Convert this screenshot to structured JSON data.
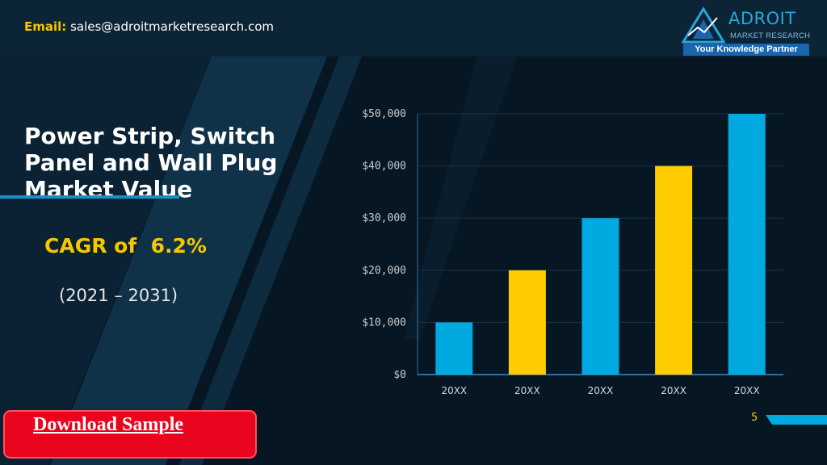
{
  "header": {
    "email_label": "Email:",
    "email": "sales@adroitmarketresearch.com",
    "logo": {
      "brand": "ADROIT",
      "subtitle": "MARKET RESEARCH",
      "tagline": "Your Knowledge Partner",
      "icon": "triangle-logo-icon"
    }
  },
  "main": {
    "title": "Power Strip, Switch Panel and Wall Plug Market Value",
    "cagr": "CAGR of  6.2%",
    "period": "(2021 – 2031)"
  },
  "download": {
    "label": "Download Sample"
  },
  "page_number": "5",
  "colors": {
    "background": "#061622",
    "accent_blue": "#00a9df",
    "accent_yellow": "#ffcc00",
    "button_red": "#e8051d"
  },
  "chart_data": {
    "type": "bar",
    "categories": [
      "20XX",
      "20XX",
      "20XX",
      "20XX",
      "20XX"
    ],
    "values": [
      10000,
      20000,
      30000,
      40000,
      50000
    ],
    "bar_colors": [
      "#00a9df",
      "#ffcc00",
      "#00a9df",
      "#ffcc00",
      "#00a9df"
    ],
    "yticks": [
      0,
      10000,
      20000,
      30000,
      40000,
      50000
    ],
    "ytick_labels": [
      "$0",
      "$10,000",
      "$20,000",
      "$30,000",
      "$40,000",
      "$50,000"
    ],
    "ylim": [
      0,
      50000
    ],
    "grid": true,
    "legend": "none"
  }
}
